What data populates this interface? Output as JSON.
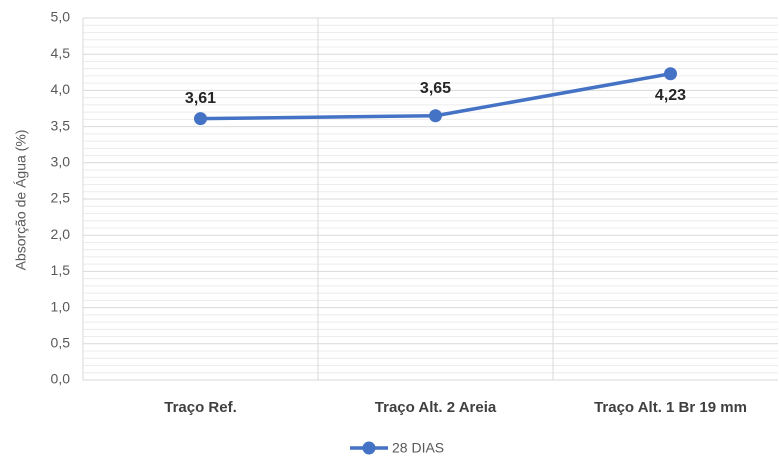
{
  "chart_data": {
    "type": "line",
    "y_label": "Absorção de Água (%)",
    "categories": [
      "Traço Ref.",
      "Traço Alt. 2 Areia",
      "Traço Alt. 1 Br 19 mm"
    ],
    "series": [
      {
        "name": "28 DIAS",
        "color": "#4472c4",
        "values": [
          3.61,
          3.65,
          4.23
        ],
        "value_labels": [
          "3,61",
          "3,65",
          "4,23"
        ]
      }
    ],
    "ylim": [
      0,
      5
    ],
    "yticks": [
      {
        "value": 0,
        "label": "0,0"
      },
      {
        "value": 0.5,
        "label": "0,5"
      },
      {
        "value": 1,
        "label": "1,0"
      },
      {
        "value": 1.5,
        "label": "1,5"
      },
      {
        "value": 2,
        "label": "2,0"
      },
      {
        "value": 2.5,
        "label": "2,5"
      },
      {
        "value": 3,
        "label": "3,0"
      },
      {
        "value": 3.5,
        "label": "3,5"
      },
      {
        "value": 4,
        "label": "4,0"
      },
      {
        "value": 4.5,
        "label": "4,5"
      },
      {
        "value": 5,
        "label": "5,0"
      }
    ],
    "grid": true,
    "legend": "bottom"
  }
}
